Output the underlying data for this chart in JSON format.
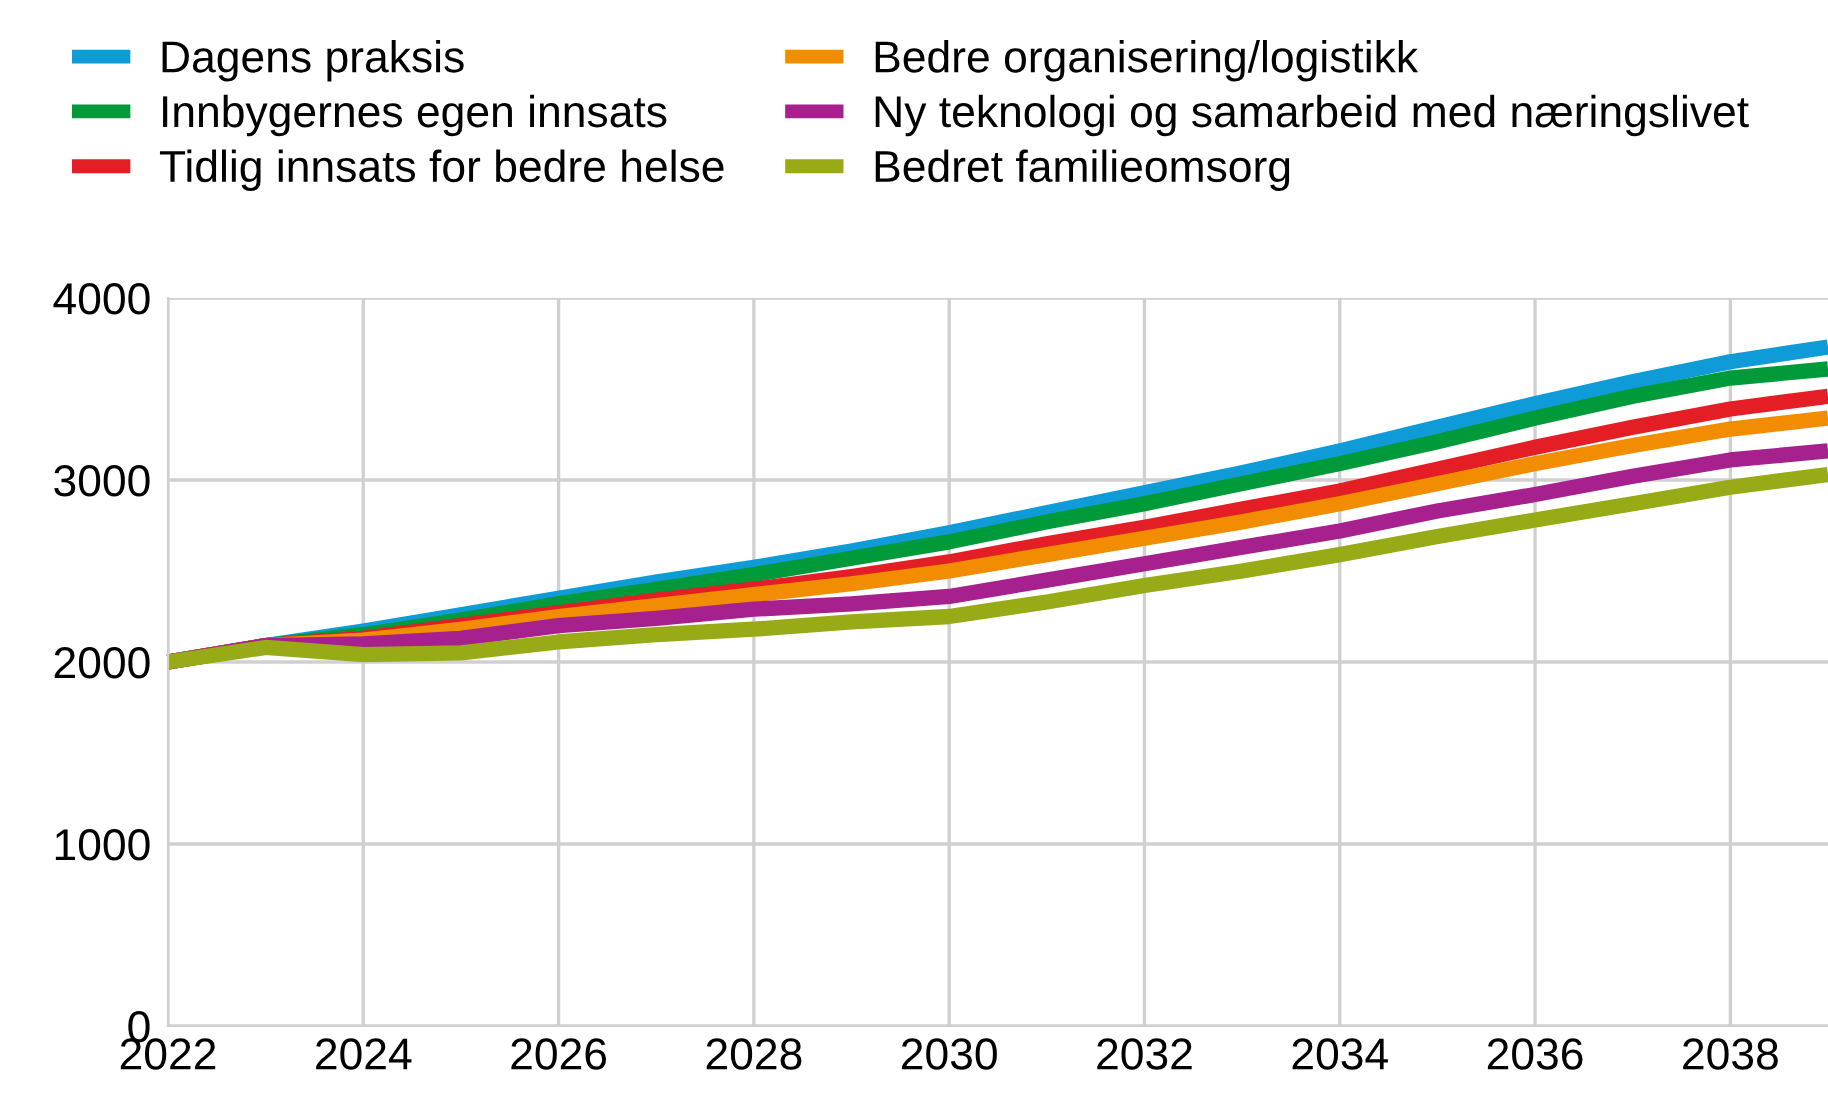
{
  "chart_data": {
    "type": "line",
    "x": [
      2022,
      2023,
      2024,
      2025,
      2026,
      2027,
      2028,
      2029,
      2030,
      2031,
      2032,
      2033,
      2034,
      2035,
      2036,
      2037,
      2038,
      2039
    ],
    "series": [
      {
        "name": "Dagens praksis",
        "color": "#0e9bd7",
        "values": [
          2000,
          2090,
          2170,
          2260,
          2350,
          2440,
          2520,
          2610,
          2710,
          2820,
          2930,
          3040,
          3160,
          3290,
          3420,
          3540,
          3650,
          3730
        ]
      },
      {
        "name": "Innbygernes egen innsats",
        "color": "#009a3a",
        "values": [
          2000,
          2090,
          2150,
          2230,
          2320,
          2400,
          2480,
          2570,
          2660,
          2770,
          2870,
          2980,
          3090,
          3210,
          3340,
          3460,
          3560,
          3610
        ]
      },
      {
        "name": "Tidlig innsats for bedre helse",
        "color": "#e31e24",
        "values": [
          2000,
          2090,
          2130,
          2200,
          2270,
          2340,
          2400,
          2470,
          2550,
          2650,
          2740,
          2840,
          2940,
          3060,
          3180,
          3290,
          3390,
          3460
        ]
      },
      {
        "name": "Bedre organisering/logistikk",
        "color": "#f28c00",
        "values": [
          2000,
          2090,
          2120,
          2180,
          2250,
          2310,
          2370,
          2430,
          2500,
          2590,
          2680,
          2770,
          2870,
          2980,
          3090,
          3190,
          3280,
          3340
        ]
      },
      {
        "name": "Ny teknologi og samarbeid med næringslivet",
        "color": "#a6208e",
        "values": [
          2000,
          2090,
          2100,
          2130,
          2200,
          2240,
          2290,
          2320,
          2360,
          2450,
          2540,
          2630,
          2720,
          2830,
          2920,
          3020,
          3110,
          3160
        ]
      },
      {
        "name": "Bedret familieomsorg",
        "color": "#98ab16",
        "values": [
          2000,
          2080,
          2040,
          2050,
          2110,
          2150,
          2180,
          2220,
          2250,
          2330,
          2420,
          2500,
          2590,
          2690,
          2780,
          2870,
          2960,
          3030
        ]
      }
    ],
    "xlim": [
      2022,
      2039
    ],
    "xticks": [
      2022,
      2024,
      2026,
      2028,
      2030,
      2032,
      2034,
      2036,
      2038
    ],
    "ylim": [
      0,
      4000
    ],
    "yticks": [
      0,
      1000,
      2000,
      3000,
      4000
    ],
    "grid": true,
    "legend": "top",
    "marker": "none",
    "line_style": "solid"
  }
}
